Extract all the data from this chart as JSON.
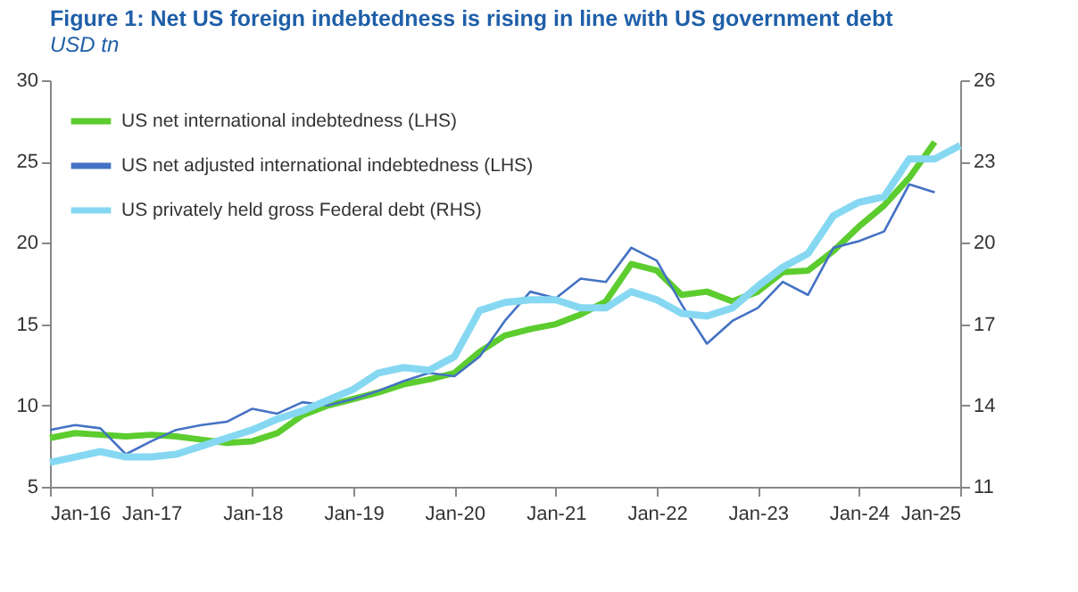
{
  "chart_data": {
    "type": "line",
    "title": "Figure 1: Net US foreign indebtedness is rising in line with US government debt",
    "subtitle": "USD tn",
    "x": [
      "2016-01",
      "2016-04",
      "2016-07",
      "2016-10",
      "2017-01",
      "2017-04",
      "2017-07",
      "2017-10",
      "2018-01",
      "2018-04",
      "2018-07",
      "2018-10",
      "2019-01",
      "2019-04",
      "2019-07",
      "2019-10",
      "2020-01",
      "2020-04",
      "2020-07",
      "2020-10",
      "2021-01",
      "2021-04",
      "2021-07",
      "2021-10",
      "2022-01",
      "2022-04",
      "2022-07",
      "2022-10",
      "2023-01",
      "2023-04",
      "2023-07",
      "2023-10",
      "2024-01",
      "2024-04",
      "2024-07",
      "2024-10"
    ],
    "series": [
      {
        "name": "US net international indebtedness (LHS)",
        "color": "#5ccc2e",
        "values": [
          8.0,
          8.3,
          8.2,
          8.1,
          8.2,
          8.1,
          7.9,
          7.7,
          7.8,
          8.3,
          9.4,
          10.0,
          10.4,
          10.8,
          11.3,
          11.6,
          12.0,
          13.3,
          14.3,
          14.7,
          15.0,
          15.6,
          16.4,
          18.7,
          18.3,
          16.8,
          17.0,
          16.4,
          17.0,
          18.2,
          18.3,
          19.5,
          21.0,
          22.3,
          24.0,
          26.2
        ]
      },
      {
        "name": "US net adjusted international indebtedness (LHS)",
        "color": "#4472c4",
        "values": [
          8.5,
          8.8,
          8.6,
          7.0,
          7.8,
          8.5,
          8.8,
          9.0,
          9.8,
          9.5,
          10.2,
          10.0,
          10.4,
          10.9,
          11.5,
          12.0,
          11.8,
          13.0,
          15.2,
          17.0,
          16.6,
          17.8,
          17.6,
          19.7,
          18.9,
          16.2,
          13.8,
          15.2,
          16.0,
          17.6,
          16.8,
          19.7,
          20.1,
          20.7,
          23.6,
          23.1
        ]
      },
      {
        "name": "US privately held gross Federal debt (RHS)",
        "color": "#86d8f2",
        "axis": "y2",
        "x": [
          "2016-01",
          "2016-04",
          "2016-07",
          "2016-10",
          "2017-01",
          "2017-04",
          "2017-07",
          "2017-10",
          "2018-01",
          "2018-04",
          "2018-07",
          "2018-10",
          "2019-01",
          "2019-04",
          "2019-07",
          "2019-10",
          "2020-01",
          "2020-04",
          "2020-07",
          "2020-10",
          "2021-01",
          "2021-04",
          "2021-07",
          "2021-10",
          "2022-01",
          "2022-04",
          "2022-07",
          "2022-10",
          "2023-01",
          "2023-04",
          "2023-07",
          "2023-10",
          "2024-01",
          "2024-04",
          "2024-07",
          "2024-10",
          "2025-01"
        ],
        "values": [
          11.9,
          12.1,
          12.3,
          12.1,
          12.1,
          12.2,
          12.5,
          12.8,
          13.1,
          13.5,
          13.8,
          14.2,
          14.6,
          15.2,
          15.4,
          15.3,
          15.8,
          17.5,
          17.8,
          17.9,
          17.9,
          17.6,
          17.6,
          18.2,
          17.9,
          17.4,
          17.3,
          17.6,
          18.4,
          19.1,
          19.6,
          21.0,
          21.5,
          21.7,
          23.1,
          23.1,
          23.6
        ]
      }
    ],
    "xlim": [
      "2016-01",
      "2025-01"
    ],
    "xticks": [
      {
        "value": "2016-01",
        "label": "Jan-16"
      },
      {
        "value": "2017-01",
        "label": "Jan-17"
      },
      {
        "value": "2018-01",
        "label": "Jan-18"
      },
      {
        "value": "2019-01",
        "label": "Jan-19"
      },
      {
        "value": "2020-01",
        "label": "Jan-20"
      },
      {
        "value": "2021-01",
        "label": "Jan-21"
      },
      {
        "value": "2022-01",
        "label": "Jan-22"
      },
      {
        "value": "2023-01",
        "label": "Jan-23"
      },
      {
        "value": "2024-01",
        "label": "Jan-24"
      },
      {
        "value": "2025-01",
        "label": "Jan-25"
      }
    ],
    "ylim": [
      5,
      30
    ],
    "yticks": [
      5,
      10,
      15,
      20,
      25,
      30
    ],
    "y2lim": [
      11,
      26
    ],
    "y2ticks": [
      11,
      14,
      17,
      20,
      23,
      26
    ],
    "legend": "top left",
    "grid": false,
    "line_style": "solid",
    "marker": "none"
  }
}
